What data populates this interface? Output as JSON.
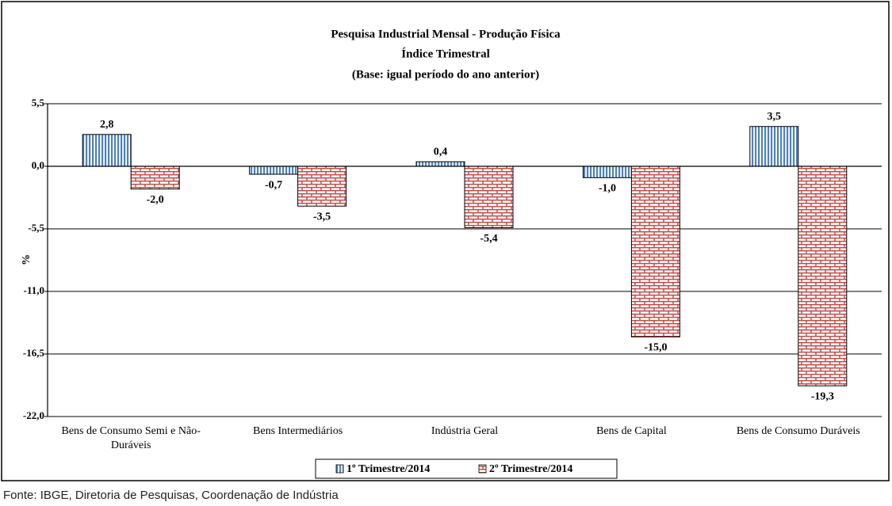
{
  "chart_data": {
    "type": "bar",
    "title": "Pesquisa Industrial Mensal - Produção Física",
    "subtitles": [
      "Índice Trimestral",
      "(Base: igual período do ano anterior)"
    ],
    "y_label": "%",
    "categories": [
      "Bens de Consumo Semi e Não-Duráveis",
      "Bens Intermediários",
      "Indústria Geral",
      "Bens de Capital",
      "Bens de Consumo Duráveis"
    ],
    "series": [
      {
        "name": "1º Trimestre/2014",
        "color": "#4f81bd",
        "pattern": "vertical-stripes",
        "values": [
          2.8,
          -0.7,
          0.4,
          -1.0,
          3.5
        ],
        "value_labels": [
          "2,8",
          "-0,7",
          "0,4",
          "-1,0",
          "3,5"
        ]
      },
      {
        "name": "2º Trimestre/2014",
        "color": "#c0504d",
        "pattern": "brick",
        "values": [
          -2.0,
          -3.5,
          -5.4,
          -15.0,
          -19.3
        ],
        "value_labels": [
          "-2,0",
          "-3,5",
          "-5,4",
          "-15,0",
          "-19,3"
        ]
      }
    ],
    "ylim": [
      -22,
      5.5
    ],
    "yticks": [
      {
        "value": 5.5,
        "label": "5,5"
      },
      {
        "value": 0,
        "label": "0,0"
      },
      {
        "value": -5.5,
        "label": "-5,5"
      },
      {
        "value": -11,
        "label": "-11,0"
      },
      {
        "value": -16.5,
        "label": "-16,5"
      },
      {
        "value": -22,
        "label": "-22,0"
      }
    ],
    "grid": true,
    "legend": "bottom",
    "source": "Fonte: IBGE, Diretoria de Pesquisas, Coordenação de Indústria"
  }
}
